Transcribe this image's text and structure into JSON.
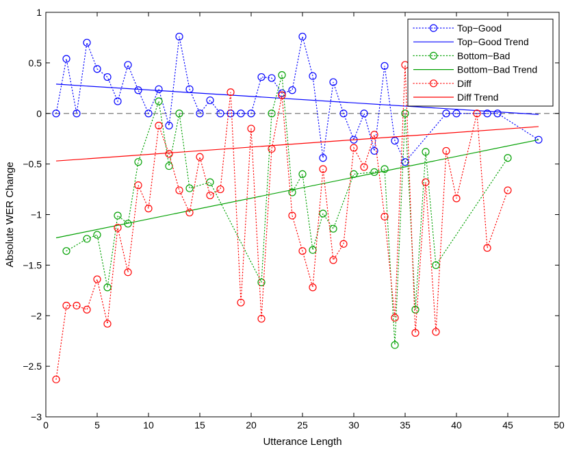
{
  "chart_data": {
    "type": "scatter",
    "title": "",
    "xlabel": "Utterance Length",
    "ylabel": "Absolute WER Change",
    "xlim": [
      0,
      50
    ],
    "ylim": [
      -3,
      1
    ],
    "xticks": [
      0,
      5,
      10,
      15,
      20,
      25,
      30,
      35,
      40,
      45,
      50
    ],
    "yticks": [
      1,
      0.5,
      0,
      -0.5,
      -1,
      -1.5,
      -2,
      -2.5,
      -3
    ],
    "legend_position": "top-right",
    "zero_line": true,
    "series": [
      {
        "name": "Top−Good",
        "color": "#0000ff",
        "style": "dotted-circles",
        "points": [
          [
            1,
            0
          ],
          [
            2,
            0.54
          ],
          [
            3,
            0
          ],
          [
            4,
            0.7
          ],
          [
            5,
            0.44
          ],
          [
            6,
            0.36
          ],
          [
            7,
            0.12
          ],
          [
            8,
            0.48
          ],
          [
            9,
            0.23
          ],
          [
            10,
            0
          ],
          [
            11,
            0.24
          ],
          [
            12,
            -0.12
          ],
          [
            13,
            0.76
          ],
          [
            14,
            0.24
          ],
          [
            15,
            0
          ],
          [
            16,
            0.13
          ],
          [
            17,
            0
          ],
          [
            18,
            0
          ],
          [
            19,
            0
          ],
          [
            20,
            0
          ],
          [
            21,
            0.36
          ],
          [
            22,
            0.35
          ],
          [
            23,
            0.2
          ],
          [
            24,
            0.23
          ],
          [
            25,
            0.76
          ],
          [
            26,
            0.37
          ],
          [
            27,
            -0.44
          ],
          [
            28,
            0.31
          ],
          [
            29,
            0
          ],
          [
            30,
            -0.26
          ],
          [
            31,
            0
          ],
          [
            32,
            -0.37
          ],
          [
            33,
            0.47
          ],
          [
            34,
            -0.27
          ],
          [
            35,
            -0.48
          ],
          [
            39,
            0
          ],
          [
            40,
            0
          ],
          [
            43,
            0
          ],
          [
            44,
            0
          ],
          [
            48,
            -0.26
          ]
        ]
      },
      {
        "name": "Top−Good Trend",
        "color": "#0000ff",
        "style": "line",
        "line": [
          [
            1,
            0.29
          ],
          [
            48,
            -0.01
          ]
        ]
      },
      {
        "name": "Bottom−Bad",
        "color": "#00a000",
        "style": "dotted-circles",
        "points": [
          [
            2,
            -1.36
          ],
          [
            4,
            -1.24
          ],
          [
            5,
            -1.2
          ],
          [
            6,
            -1.72
          ],
          [
            7,
            -1.01
          ],
          [
            8,
            -1.09
          ],
          [
            9,
            -0.48
          ],
          [
            11,
            0.12
          ],
          [
            12,
            -0.52
          ],
          [
            13,
            0
          ],
          [
            14,
            -0.74
          ],
          [
            16,
            -0.68
          ],
          [
            21,
            -1.67
          ],
          [
            22,
            0
          ],
          [
            23,
            0.38
          ],
          [
            24,
            -0.78
          ],
          [
            25,
            -0.6
          ],
          [
            26,
            -1.35
          ],
          [
            27,
            -0.99
          ],
          [
            28,
            -1.14
          ],
          [
            30,
            -0.6
          ],
          [
            32,
            -0.58
          ],
          [
            33,
            -0.55
          ],
          [
            34,
            -2.29
          ],
          [
            35,
            0
          ],
          [
            36,
            -1.94
          ],
          [
            37,
            -0.38
          ],
          [
            38,
            -1.5
          ],
          [
            45,
            -0.44
          ]
        ]
      },
      {
        "name": "Bottom−Bad Trend",
        "color": "#00a000",
        "style": "line",
        "line": [
          [
            1,
            -1.23
          ],
          [
            48,
            -0.26
          ]
        ]
      },
      {
        "name": "Diff",
        "color": "#ff0000",
        "style": "dotted-circles",
        "points": [
          [
            1,
            -2.63
          ],
          [
            2,
            -1.9
          ],
          [
            3,
            -1.9
          ],
          [
            4,
            -1.94
          ],
          [
            5,
            -1.64
          ],
          [
            6,
            -2.08
          ],
          [
            7,
            -1.13
          ],
          [
            8,
            -1.57
          ],
          [
            9,
            -0.71
          ],
          [
            10,
            -0.94
          ],
          [
            11,
            -0.12
          ],
          [
            12,
            -0.4
          ],
          [
            13,
            -0.76
          ],
          [
            14,
            -0.98
          ],
          [
            15,
            -0.43
          ],
          [
            16,
            -0.81
          ],
          [
            17,
            -0.75
          ],
          [
            18,
            0.21
          ],
          [
            19,
            -1.87
          ],
          [
            20,
            -0.15
          ],
          [
            21,
            -2.03
          ],
          [
            22,
            -0.35
          ],
          [
            23,
            0.18
          ],
          [
            24,
            -1.01
          ],
          [
            25,
            -1.36
          ],
          [
            26,
            -1.72
          ],
          [
            27,
            -0.55
          ],
          [
            28,
            -1.45
          ],
          [
            29,
            -1.29
          ],
          [
            30,
            -0.34
          ],
          [
            31,
            -0.53
          ],
          [
            32,
            -0.21
          ],
          [
            33,
            -1.02
          ],
          [
            34,
            -2.02
          ],
          [
            35,
            0.48
          ],
          [
            36,
            -2.17
          ],
          [
            37,
            -0.68
          ],
          [
            38,
            -2.16
          ],
          [
            39,
            -0.37
          ],
          [
            40,
            -0.84
          ],
          [
            42,
            0
          ],
          [
            43,
            -1.33
          ],
          [
            45,
            -0.76
          ]
        ]
      },
      {
        "name": "Diff Trend",
        "color": "#ff0000",
        "style": "line",
        "line": [
          [
            1,
            -0.47
          ],
          [
            48,
            -0.13
          ]
        ]
      }
    ]
  }
}
